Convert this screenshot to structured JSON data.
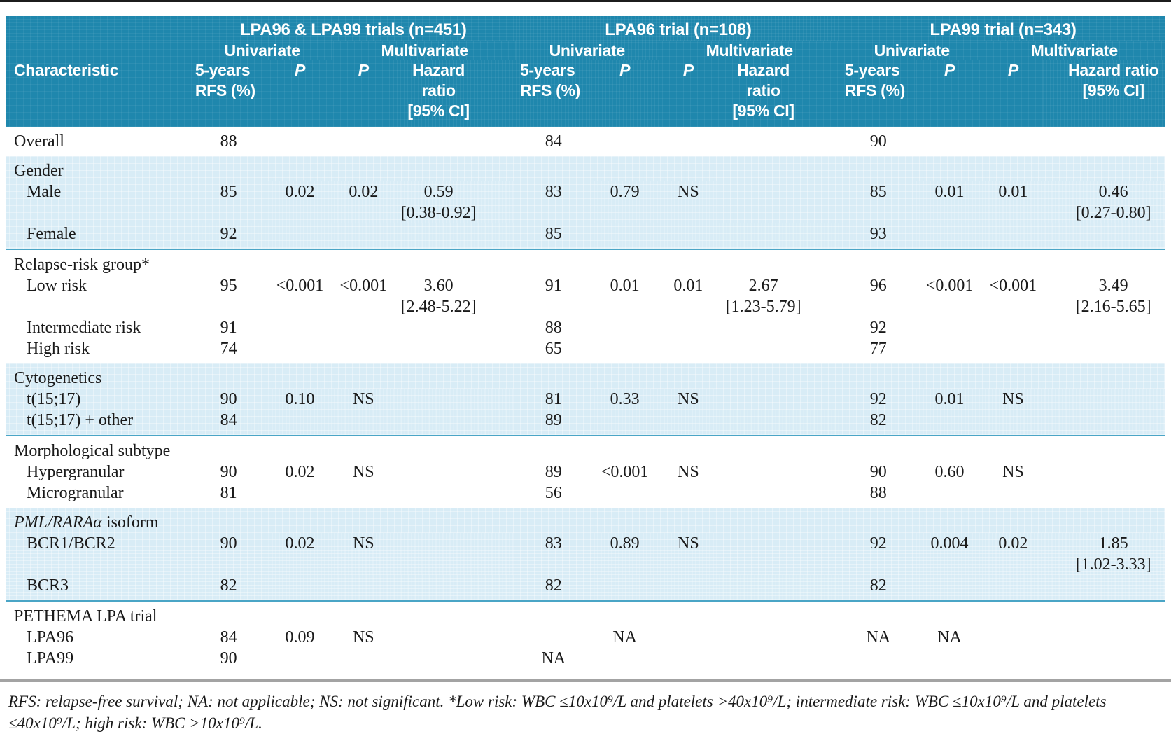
{
  "colors": {
    "header_bg": "#1f87ad",
    "band_bg": "#d8ecf6",
    "band_border": "#4aa5c6",
    "rule": "#a3a3a3"
  },
  "header": {
    "characteristic": "Characteristic",
    "groups": [
      {
        "title": "LPA96 & LPA99 trials (n=451)",
        "univariate": "Univariate",
        "multivariate": "Multivariate",
        "cols": {
          "rfs": "5-years\nRFS (%)",
          "p_uni": "P",
          "p_multi": "P",
          "hr": "Hazard ratio\n[95% CI]"
        }
      },
      {
        "title": "LPA96 trial (n=108)",
        "univariate": "Univariate",
        "multivariate": "Multivariate",
        "cols": {
          "rfs": "5-years\nRFS (%)",
          "p_uni": "P",
          "p_multi": "P",
          "hr": "Hazard ratio\n[95% CI]"
        }
      },
      {
        "title": "LPA99 trial (n=343)",
        "univariate": "Univariate",
        "multivariate": "Multivariate",
        "cols": {
          "rfs": "5-years\nRFS (%)",
          "p_uni": "P",
          "p_multi": "P",
          "hr": "Hazard ratio\n[95% CI]"
        }
      }
    ]
  },
  "sections": [
    {
      "name": "overall",
      "shaded": false,
      "rows": [
        {
          "label": "Overall",
          "indent": 0,
          "cells": [
            "88",
            "",
            "",
            "",
            "84",
            "",
            "",
            "",
            "90",
            "",
            "",
            ""
          ]
        }
      ]
    },
    {
      "name": "gender",
      "shaded": true,
      "rows": [
        {
          "label": "Gender",
          "indent": 0,
          "header": true
        },
        {
          "label": "Male",
          "indent": 1,
          "cells": [
            "85",
            "0.02",
            "0.02",
            "0.59\n[0.38-0.92]",
            "83",
            "0.79",
            "NS",
            "",
            "85",
            "0.01",
            "0.01",
            "0.46\n[0.27-0.80]"
          ]
        },
        {
          "label": "Female",
          "indent": 1,
          "cells": [
            "92",
            "",
            "",
            "",
            "85",
            "",
            "",
            "",
            "93",
            "",
            "",
            ""
          ]
        }
      ]
    },
    {
      "name": "relapse-risk-group",
      "shaded": false,
      "rows": [
        {
          "label": "Relapse-risk group*",
          "indent": 0,
          "header": true
        },
        {
          "label": "Low risk",
          "indent": 1,
          "cells": [
            "95",
            "<0.001",
            "<0.001",
            "3.60\n[2.48-5.22]",
            "91",
            "0.01",
            "0.01",
            "2.67\n[1.23-5.79]",
            "96",
            "<0.001",
            "<0.001",
            "3.49\n[2.16-5.65]"
          ]
        },
        {
          "label": "Intermediate risk",
          "indent": 1,
          "cells": [
            "91",
            "",
            "",
            "",
            "88",
            "",
            "",
            "",
            "92",
            "",
            "",
            ""
          ]
        },
        {
          "label": "High risk",
          "indent": 1,
          "cells": [
            "74",
            "",
            "",
            "",
            "65",
            "",
            "",
            "",
            "77",
            "",
            "",
            ""
          ]
        }
      ]
    },
    {
      "name": "cytogenetics",
      "shaded": true,
      "rows": [
        {
          "label": "Cytogenetics",
          "indent": 0,
          "header": true
        },
        {
          "label": "t(15;17)",
          "indent": 1,
          "cells": [
            "90",
            "0.10",
            "NS",
            "",
            "81",
            "0.33",
            "NS",
            "",
            "92",
            "0.01",
            "NS",
            ""
          ]
        },
        {
          "label": "t(15;17) + other",
          "indent": 1,
          "cells": [
            "84",
            "",
            "",
            "",
            "89",
            "",
            "",
            "",
            "82",
            "",
            "",
            ""
          ]
        }
      ]
    },
    {
      "name": "morphological-subtype",
      "shaded": false,
      "rows": [
        {
          "label": "Morphological subtype",
          "indent": 0,
          "header": true
        },
        {
          "label": "Hypergranular",
          "indent": 1,
          "cells": [
            "90",
            "0.02",
            "NS",
            "",
            "89",
            "<0.001",
            "NS",
            "",
            "90",
            "0.60",
            "NS",
            ""
          ]
        },
        {
          "label": "Microgranular",
          "indent": 1,
          "cells": [
            "81",
            "",
            "",
            "",
            "56",
            "",
            "",
            "",
            "88",
            "",
            "",
            ""
          ]
        }
      ]
    },
    {
      "name": "pml-rara-isoform",
      "shaded": true,
      "rows": [
        {
          "label_parts": [
            {
              "text": "PML/RARAα",
              "italic": true
            },
            {
              "text": " isoform",
              "italic": false
            }
          ],
          "indent": 0,
          "header": true
        },
        {
          "label": "BCR1/BCR2",
          "indent": 1,
          "cells": [
            "90",
            "0.02",
            "NS",
            "",
            "83",
            "0.89",
            "NS",
            "",
            "92",
            "0.004",
            "0.02",
            "1.85\n[1.02-3.33]"
          ]
        },
        {
          "label": "BCR3",
          "indent": 1,
          "cells": [
            "82",
            "",
            "",
            "",
            "82",
            "",
            "",
            "",
            "82",
            "",
            "",
            ""
          ]
        }
      ]
    },
    {
      "name": "pethema-lpa-trial",
      "shaded": false,
      "rows": [
        {
          "label": "PETHEMA LPA trial",
          "indent": 0,
          "header": true
        },
        {
          "label": "LPA96",
          "indent": 1,
          "cells": [
            "84",
            "0.09",
            "NS",
            "",
            "",
            "NA",
            "",
            "",
            "NA",
            "NA",
            "",
            ""
          ]
        },
        {
          "label": "LPA99",
          "indent": 1,
          "cells": [
            "90",
            "",
            "",
            "",
            "NA",
            "",
            "",
            "",
            "",
            "",
            "",
            ""
          ]
        }
      ]
    }
  ],
  "footnote": "RFS: relapse-free survival; NA: not applicable; NS: not significant. *Low risk: WBC ≤10x10⁹/L and platelets >40x10⁹/L; intermediate risk: WBC ≤10x10⁹/L and platelets ≤40x10⁹/L; high risk: WBC >10x10⁹/L."
}
